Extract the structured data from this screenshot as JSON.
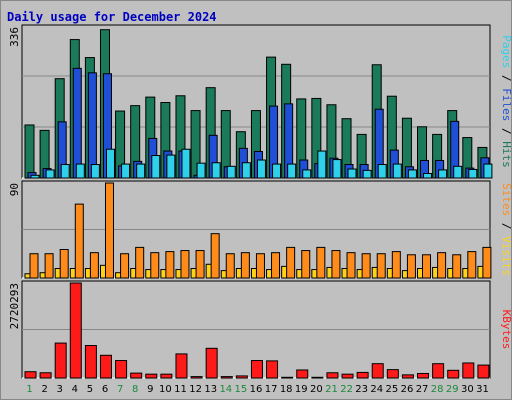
{
  "title": "Daily usage for December 2024",
  "colors": {
    "pages": "#1a7a5a",
    "files": "#1f4fd6",
    "hits": "#2fd0ea",
    "sites": "#ffd21a",
    "visits": "#ff8c1a",
    "kbytes": "#ff1a1a",
    "weekend_day": "#1a8a3a",
    "weekday": "#000000"
  },
  "chart_data": [
    {
      "type": "bar",
      "title": "Daily usage for December 2024",
      "ylabel_parts": {
        "pages": "Pages",
        "files": "Files",
        "hits": "Hits",
        "sep": "/"
      },
      "ymax_label": "336",
      "ylim": [
        0,
        336
      ],
      "categories": [
        "1",
        "2",
        "3",
        "4",
        "5",
        "6",
        "7",
        "8",
        "9",
        "10",
        "11",
        "12",
        "13",
        "14",
        "15",
        "16",
        "17",
        "18",
        "19",
        "20",
        "21",
        "22",
        "23",
        "24",
        "25",
        "26",
        "27",
        "28",
        "29",
        "30",
        "31"
      ],
      "weekend": [
        1,
        7,
        8,
        14,
        15,
        21,
        22,
        28,
        29
      ],
      "series": [
        {
          "name": "Hits",
          "values": [
            118,
            106,
            221,
            308,
            268,
            330,
            149,
            161,
            180,
            168,
            183,
            150,
            201,
            150,
            103,
            150,
            269,
            253,
            176,
            177,
            163,
            132,
            97,
            252,
            182,
            133,
            114,
            97,
            150,
            90,
            68
          ]
        },
        {
          "name": "Files",
          "values": [
            12,
            21,
            125,
            244,
            234,
            232,
            27,
            37,
            88,
            60,
            60,
            6,
            95,
            25,
            66,
            59,
            160,
            165,
            40,
            32,
            44,
            30,
            30,
            153,
            62,
            25,
            39,
            39,
            126,
            22,
            45
          ]
        },
        {
          "name": "Pages",
          "values": [
            6,
            18,
            30,
            31,
            30,
            64,
            31,
            31,
            50,
            51,
            64,
            33,
            34,
            26,
            34,
            40,
            31,
            31,
            18,
            60,
            41,
            20,
            17,
            30,
            31,
            18,
            10,
            18,
            26,
            19,
            31
          ]
        }
      ]
    },
    {
      "type": "bar",
      "ylabel_parts": {
        "sites": "Sites",
        "visits": "Visits",
        "sep": "/"
      },
      "ymax_label": "90",
      "ylim": [
        0,
        90
      ],
      "categories": [
        "1",
        "2",
        "3",
        "4",
        "5",
        "6",
        "7",
        "8",
        "9",
        "10",
        "11",
        "12",
        "13",
        "14",
        "15",
        "16",
        "17",
        "18",
        "19",
        "20",
        "21",
        "22",
        "23",
        "24",
        "25",
        "26",
        "27",
        "28",
        "29",
        "30",
        "31"
      ],
      "series": [
        {
          "name": "Visits",
          "values": [
            23,
            23,
            27,
            70,
            24,
            90,
            23,
            29,
            24,
            25,
            26,
            26,
            42,
            23,
            24,
            23,
            24,
            29,
            26,
            29,
            26,
            24,
            23,
            23,
            25,
            22,
            22,
            24,
            22,
            25,
            29
          ]
        },
        {
          "name": "Sites",
          "values": [
            4,
            5,
            9,
            9,
            9,
            12,
            5,
            9,
            8,
            8,
            8,
            9,
            13,
            7,
            9,
            9,
            8,
            11,
            8,
            8,
            10,
            9,
            8,
            10,
            9,
            7,
            9,
            10,
            9,
            9,
            11
          ]
        }
      ]
    },
    {
      "type": "bar",
      "ylabel_parts": {
        "kbytes": "KBytes"
      },
      "ymax_label": "2720293",
      "ylim": [
        0,
        2720293
      ],
      "categories": [
        "1",
        "2",
        "3",
        "4",
        "5",
        "6",
        "7",
        "8",
        "9",
        "10",
        "11",
        "12",
        "13",
        "14",
        "15",
        "16",
        "17",
        "18",
        "19",
        "20",
        "21",
        "22",
        "23",
        "24",
        "25",
        "26",
        "27",
        "28",
        "29",
        "30",
        "31"
      ],
      "series": [
        {
          "name": "KBytes",
          "values": [
            180000,
            150000,
            1000000,
            2720000,
            930000,
            650000,
            500000,
            140000,
            110000,
            110000,
            690000,
            40000,
            850000,
            40000,
            60000,
            500000,
            490000,
            20000,
            230000,
            20000,
            150000,
            110000,
            160000,
            410000,
            240000,
            90000,
            130000,
            410000,
            220000,
            430000,
            370000
          ]
        }
      ]
    }
  ]
}
